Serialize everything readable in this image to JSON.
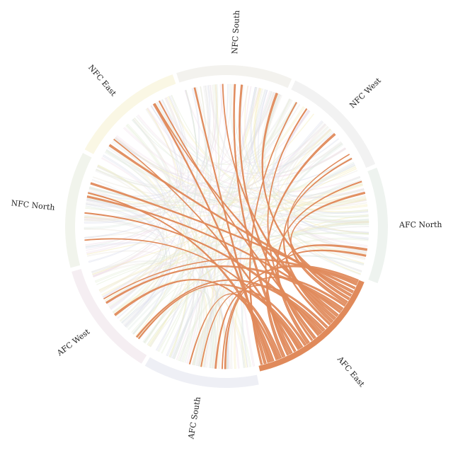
{
  "chart_data": {
    "type": "chord",
    "groups": [
      {
        "name": "AFC East",
        "color": "#e08a5b",
        "value": 80,
        "highlight": true
      },
      {
        "name": "AFC South",
        "color": "#eeeff5",
        "value": 61
      },
      {
        "name": "AFC West",
        "color": "#f5eef2",
        "value": 61
      },
      {
        "name": "NFC North",
        "color": "#f1f4ec",
        "value": 61
      },
      {
        "name": "NFC East",
        "color": "#faf7e4",
        "value": 61
      },
      {
        "name": "NFC South",
        "color": "#f3f2ee",
        "value": 61
      },
      {
        "name": "NFC West",
        "color": "#f2f2f2",
        "value": 61
      },
      {
        "name": "AFC North",
        "color": "#eef3ef",
        "value": 61
      }
    ],
    "ribbon_colors": [
      "#d9dbeb",
      "#f1dfeb",
      "#e4edd5",
      "#f5ecb8",
      "#ece8df",
      "#e6e6e6",
      "#dde9e1"
    ],
    "highlight_ribbon_color": "#e08a5b"
  }
}
